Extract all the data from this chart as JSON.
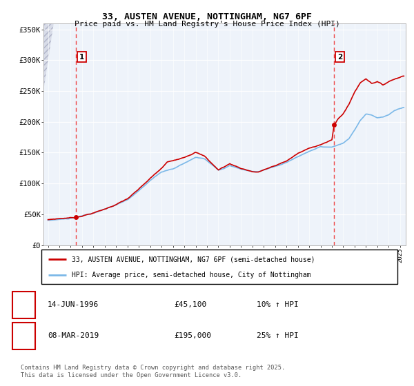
{
  "title1": "33, AUSTEN AVENUE, NOTTINGHAM, NG7 6PF",
  "title2": "Price paid vs. HM Land Registry's House Price Index (HPI)",
  "ylabel_ticks": [
    "£0",
    "£50K",
    "£100K",
    "£150K",
    "£200K",
    "£250K",
    "£300K",
    "£350K"
  ],
  "ylabel_values": [
    0,
    50000,
    100000,
    150000,
    200000,
    250000,
    300000,
    350000
  ],
  "ylim": [
    0,
    360000
  ],
  "xlim_start": 1993.6,
  "xlim_end": 2025.5,
  "purchase1": {
    "date": "14-JUN-1996",
    "year": 1996.45,
    "price": 45100
  },
  "purchase2": {
    "date": "08-MAR-2019",
    "year": 2019.18,
    "price": 195000
  },
  "hpi_color": "#7BB8E8",
  "price_color": "#CC0000",
  "dashed_color": "#EE4444",
  "bg_color": "#EEF3FA",
  "grid_color": "#FFFFFF",
  "legend_line1": "33, AUSTEN AVENUE, NOTTINGHAM, NG7 6PF (semi-detached house)",
  "legend_line2": "HPI: Average price, semi-detached house, City of Nottingham",
  "footnote": "Contains HM Land Registry data © Crown copyright and database right 2025.\nThis data is licensed under the Open Government Licence v3.0.",
  "box1_label": "1",
  "box1_date": "14-JUN-1996",
  "box1_price": "£45,100",
  "box1_hpi": "10% ↑ HPI",
  "box2_label": "2",
  "box2_date": "08-MAR-2019",
  "box2_price": "£195,000",
  "box2_hpi": "25% ↑ HPI"
}
